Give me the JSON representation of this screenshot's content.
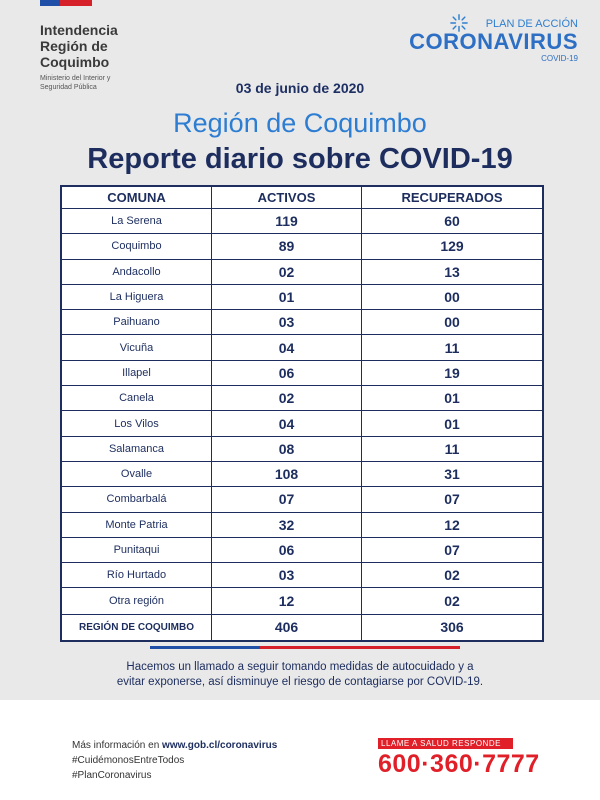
{
  "header": {
    "institution": [
      "Intendencia",
      "Región de",
      "Coquimbo"
    ],
    "ministry": [
      "Ministerio del Interior y",
      "Seguridad Pública"
    ],
    "plan_label": "PLAN DE ACCIÓN",
    "campaign": "CORONAVIRUS",
    "covid_label": "COVID-19",
    "colors": {
      "blue": "#1f4fa6",
      "red": "#d6212b",
      "navy": "#1c2d5e",
      "sky": "#2d7dd2"
    }
  },
  "date": "03 de junio de 2020",
  "region_title": "Región de Coquimbo",
  "report_title": "Reporte diario sobre COVID-19",
  "table": {
    "headers": [
      "COMUNA",
      "ACTIVOS",
      "RECUPERADOS"
    ],
    "rows": [
      [
        "La Serena",
        "119",
        "60"
      ],
      [
        "Coquimbo",
        "89",
        "129"
      ],
      [
        "Andacollo",
        "02",
        "13"
      ],
      [
        "La Higuera",
        "01",
        "00"
      ],
      [
        "Paihuano",
        "03",
        "00"
      ],
      [
        "Vicuña",
        "04",
        "11"
      ],
      [
        "Illapel",
        "06",
        "19"
      ],
      [
        "Canela",
        "02",
        "01"
      ],
      [
        "Los Vilos",
        "04",
        "01"
      ],
      [
        "Salamanca",
        "08",
        "11"
      ],
      [
        "Ovalle",
        "108",
        "31"
      ],
      [
        "Combarbalá",
        "07",
        "07"
      ],
      [
        "Monte Patria",
        "32",
        "12"
      ],
      [
        "Punitaqui",
        "06",
        "07"
      ],
      [
        "Río Hurtado",
        "03",
        "02"
      ],
      [
        "Otra región",
        "12",
        "02"
      ]
    ],
    "total": [
      "REGIÓN DE COQUIMBO",
      "406",
      "306"
    ]
  },
  "message": [
    "Hacemos un llamado a seguir tomando medidas de autocuidado y a",
    "evitar exponerse, así disminuye el riesgo de contagiarse por COVID-19."
  ],
  "footer": {
    "more_info_prefix": "Más información en ",
    "more_info_url": "www.gob.cl/coronavirus",
    "hashtags": [
      "#CuidémonosEntreTodos",
      "#PlanCoronavirus"
    ],
    "hotline_tag": "LLAME A SALUD RESPONDE",
    "hotline_number": "600·360·7777"
  }
}
